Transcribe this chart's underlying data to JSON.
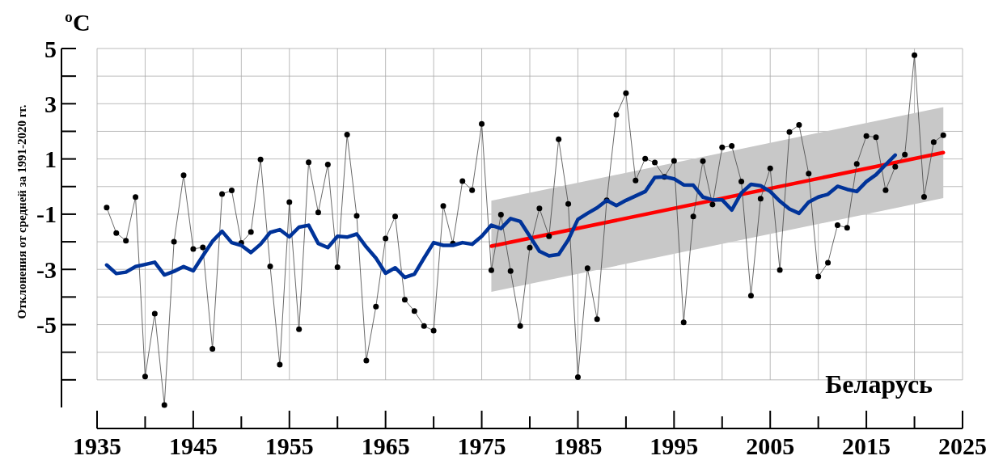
{
  "chart_data": {
    "type": "line",
    "ylabel": "Отклонения от средней за 1991-2020 гг.",
    "annotations": [
      "ºC",
      "Беларусь"
    ],
    "xlim": [
      1935,
      2025
    ],
    "ylim": [
      -8,
      5
    ],
    "xticks": [
      1935,
      {
        "value": 1940,
        "label": null
      },
      1945,
      {
        "value": 1950,
        "label": null
      },
      1955,
      {
        "value": 1960,
        "label": null
      },
      1965,
      {
        "value": 1970,
        "label": null
      },
      1975,
      {
        "value": 1980,
        "label": null
      },
      1985,
      {
        "value": 1990,
        "label": null
      },
      1995,
      {
        "value": 2000,
        "label": null
      },
      2005,
      {
        "value": 2010,
        "label": null
      },
      2015,
      {
        "value": 2020,
        "label": null
      },
      2025
    ],
    "yticks": [
      {
        "value": -7,
        "label": null
      },
      {
        "value": -6,
        "label": null
      },
      -5,
      {
        "value": -4,
        "label": null
      },
      -3,
      {
        "value": -2,
        "label": null
      },
      -1,
      {
        "value": 0,
        "label": null
      },
      1,
      {
        "value": 2,
        "label": null
      },
      3,
      {
        "value": 4,
        "label": null
      },
      5
    ],
    "grid": true,
    "series": [
      {
        "color": "#000000",
        "marker": "circle",
        "x": [
          1936,
          1937,
          1938,
          1939,
          1940,
          1941,
          1942,
          1943,
          1944,
          1945,
          1946,
          1947,
          1948,
          1949,
          1950,
          1951,
          1952,
          1953,
          1954,
          1955,
          1956,
          1957,
          1958,
          1959,
          1960,
          1961,
          1962,
          1963,
          1964,
          1965,
          1966,
          1967,
          1968,
          1969,
          1970,
          1971,
          1972,
          1973,
          1974,
          1975,
          1976,
          1977,
          1978,
          1979,
          1980,
          1981,
          1982,
          1983,
          1984,
          1985,
          1986,
          1987,
          1988,
          1989,
          1990,
          1991,
          1992,
          1993,
          1994,
          1995,
          1996,
          1997,
          1998,
          1999,
          2000,
          2001,
          2002,
          2003,
          2004,
          2005,
          2006,
          2007,
          2008,
          2009,
          2010,
          2011,
          2012,
          2013,
          2014,
          2015,
          2016,
          2017,
          2018,
          2019,
          2020,
          2021,
          2022,
          2023
        ],
        "values": [
          -0.76,
          -1.68,
          -1.96,
          -0.38,
          -6.88,
          -4.6,
          -7.91,
          -2.0,
          0.41,
          -2.26,
          -2.2,
          -5.88,
          -0.27,
          -0.14,
          -2.04,
          -1.65,
          0.98,
          -2.89,
          -6.45,
          -0.56,
          -5.17,
          0.88,
          -0.94,
          0.8,
          -2.92,
          1.88,
          -1.06,
          -6.3,
          -4.35,
          -1.88,
          -1.08,
          -4.1,
          -4.51,
          -5.05,
          -5.22,
          -0.7,
          -2.06,
          0.2,
          -0.13,
          2.27,
          -3.03,
          -1.02,
          -3.06,
          -5.05,
          -2.21,
          -0.79,
          -1.8,
          1.71,
          -0.63,
          -6.9,
          -2.96,
          -4.8,
          -0.5,
          2.6,
          3.38,
          0.22,
          1.01,
          0.87,
          0.35,
          0.93,
          -4.92,
          -1.08,
          0.92,
          -0.65,
          1.42,
          1.47,
          0.18,
          -3.95,
          -0.44,
          0.66,
          -3.02,
          1.98,
          2.23,
          0.47,
          -3.26,
          -2.76,
          -1.4,
          -1.49,
          0.82,
          1.83,
          1.79,
          -0.13,
          0.72,
          1.16,
          4.76,
          -0.37,
          1.61,
          1.86
        ]
      },
      {
        "color": "#003399",
        "marker": "none",
        "x": [
          1936,
          1937,
          1938,
          1939,
          1940,
          1941,
          1942,
          1943,
          1944,
          1945,
          1946,
          1947,
          1948,
          1949,
          1950,
          1951,
          1952,
          1953,
          1954,
          1955,
          1956,
          1957,
          1958,
          1959,
          1960,
          1961,
          1962,
          1963,
          1964,
          1965,
          1966,
          1967,
          1968,
          1969,
          1970,
          1971,
          1972,
          1973,
          1974,
          1975,
          1976,
          1977,
          1978,
          1979,
          1980,
          1981,
          1982,
          1983,
          1984,
          1985,
          1986,
          1987,
          1988,
          1989,
          1990,
          1991,
          1992,
          1993,
          1994,
          1995,
          1996,
          1997,
          1998,
          1999,
          2000,
          2001,
          2002,
          2003,
          2004,
          2005,
          2006,
          2007,
          2008,
          2009,
          2010,
          2011,
          2012,
          2013,
          2014,
          2015,
          2016,
          2017,
          2018
        ],
        "values": [
          -2.84,
          -3.15,
          -3.1,
          -2.9,
          -2.82,
          -2.74,
          -3.2,
          -3.07,
          -2.9,
          -3.05,
          -2.51,
          -1.98,
          -1.62,
          -2.03,
          -2.13,
          -2.39,
          -2.09,
          -1.66,
          -1.56,
          -1.82,
          -1.47,
          -1.4,
          -2.06,
          -2.21,
          -1.8,
          -1.83,
          -1.72,
          -2.19,
          -2.59,
          -3.14,
          -2.94,
          -3.29,
          -3.17,
          -2.59,
          -2.03,
          -2.13,
          -2.13,
          -2.03,
          -2.09,
          -1.8,
          -1.4,
          -1.52,
          -1.16,
          -1.26,
          -1.8,
          -2.34,
          -2.51,
          -2.46,
          -1.93,
          -1.19,
          -0.97,
          -0.77,
          -0.5,
          -0.69,
          -0.5,
          -0.34,
          -0.18,
          0.33,
          0.35,
          0.28,
          0.06,
          0.05,
          -0.38,
          -0.48,
          -0.48,
          -0.85,
          -0.23,
          0.08,
          0.03,
          -0.18,
          -0.53,
          -0.81,
          -0.97,
          -0.56,
          -0.38,
          -0.28,
          0.01,
          -0.1,
          -0.18,
          0.18,
          0.43,
          0.79,
          1.14
        ]
      },
      {
        "color": "#ff0000",
        "marker": "none",
        "x": [
          1976,
          2023
        ],
        "values": [
          -2.16,
          1.23
        ],
        "lower": [
          -3.81,
          -0.42
        ],
        "upper": [
          -0.51,
          2.88
        ]
      }
    ]
  }
}
